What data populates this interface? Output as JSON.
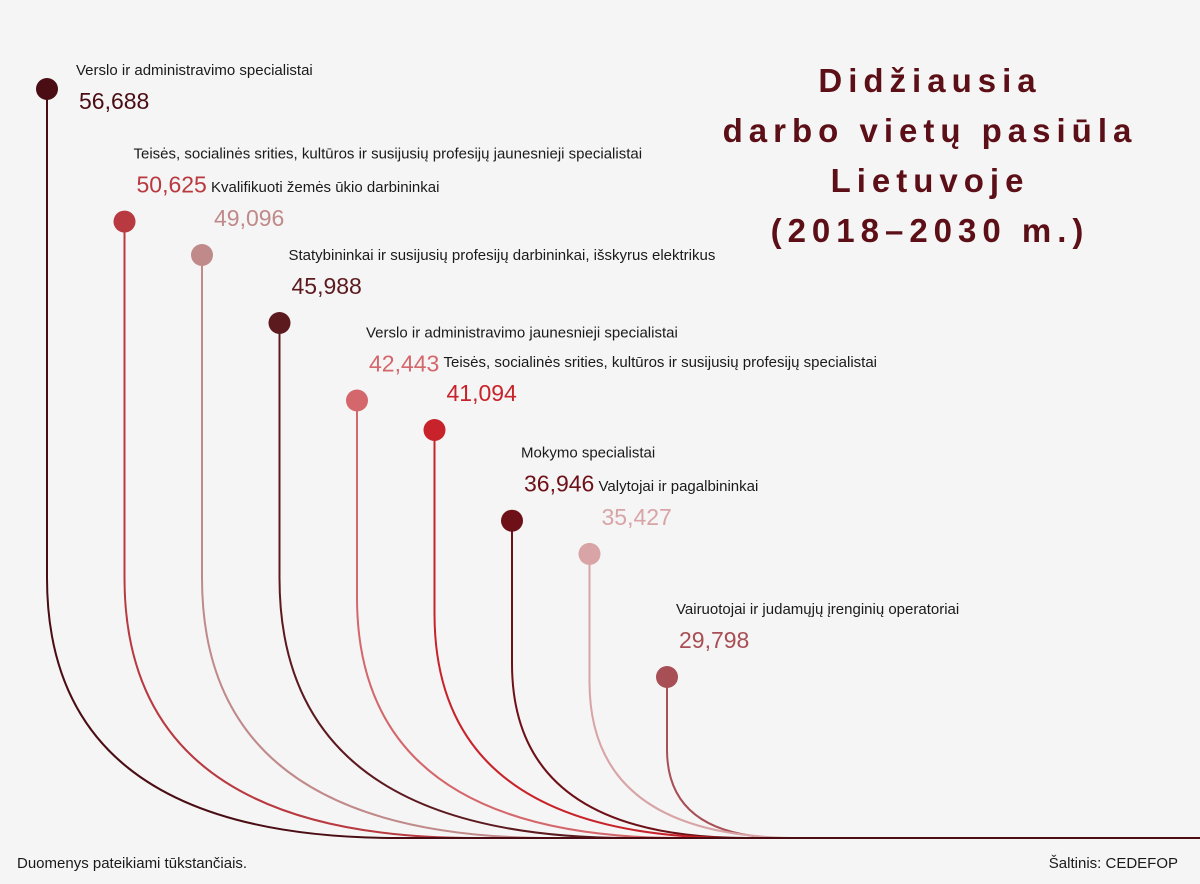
{
  "title_lines": [
    "Didžiausia",
    "darbo vietų pasiūla",
    "Lietuvoje",
    "(2018–2030 m.)"
  ],
  "footnote": "Duomenys pateikiami tūkstančiais.",
  "source": "Šaltinis: CEDEFOP",
  "chart_data": {
    "type": "bar",
    "title": "Didžiausia darbo vietų pasiūla Lietuvoje (2018–2030 m.)",
    "unit_note": "Duomenys pateikiami tūkstančiais.",
    "categories": [
      "Verslo ir administravimo specialistai",
      "Teisės, socialinės srities, kultūros ir susijusių profesijų jaunesnieji specialistai",
      "Kvalifikuoti žemės ūkio darbininkai",
      "Statybininkai ir susijusių profesijų darbininkai, išskyrus elektrikus",
      "Verslo ir administravimo jaunesnieji specialistai",
      "Teisės, socialinės srities, kultūros ir susijusių profesijų specialistai",
      "Mokymo specialistai",
      "Valytojai ir pagalbininkai",
      "Vairuotojai ir judamųjų įrenginių operatoriai"
    ],
    "values": [
      56.688,
      50.625,
      49.096,
      45.988,
      42.443,
      41.094,
      36.946,
      35.427,
      29.798
    ],
    "value_labels": [
      "56,688",
      "50,625",
      "49,096",
      "45,988",
      "42,443",
      "41,094",
      "36,946",
      "35,427",
      "29,798"
    ],
    "colors": [
      "#4a0d13",
      "#b83a40",
      "#c08a8a",
      "#5c1a1f",
      "#d4676c",
      "#c8232a",
      "#6e1018",
      "#d8a4a6",
      "#a84e55"
    ],
    "value_colors": [
      "#4a0d13",
      "#b83a40",
      "#c08a8a",
      "#5c1a1f",
      "#d4676c",
      "#c8232a",
      "#6e1018",
      "#d8a4a6",
      "#a84e55"
    ]
  }
}
